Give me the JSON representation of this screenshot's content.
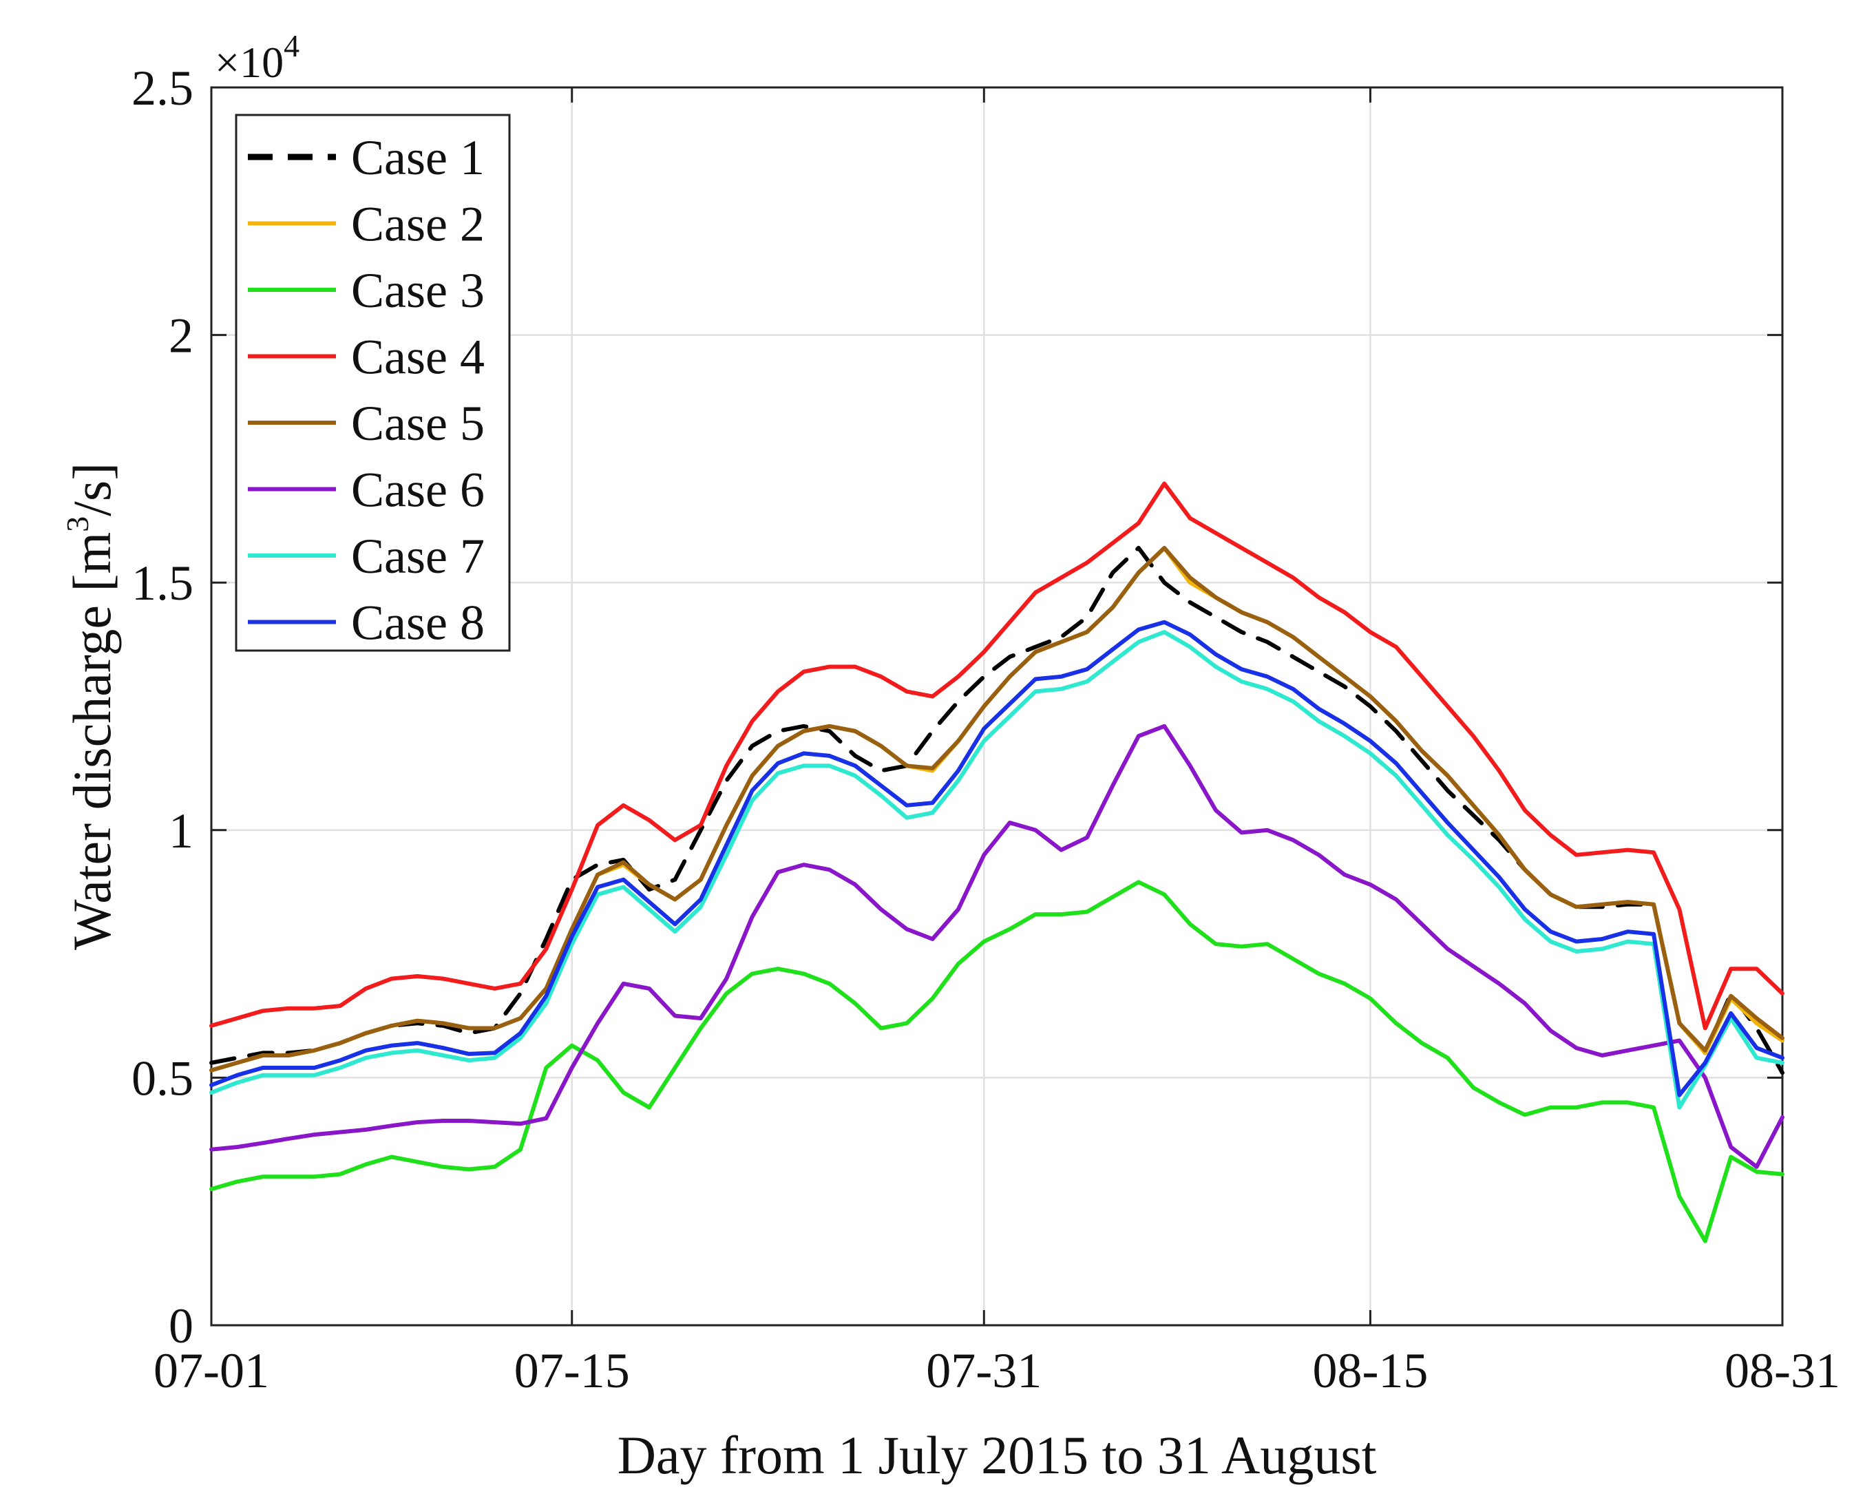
{
  "chart_data": {
    "type": "line",
    "title": "",
    "xlabel": "Day from 1 July 2015 to 31 August",
    "ylabel_main": "Water discharge [m",
    "ylabel_sup": "3",
    "ylabel_tail": "/s]",
    "y_multiplier_base": "×10",
    "y_multiplier_exp": "4",
    "xlim": [
      0,
      61
    ],
    "ylim": [
      0,
      2.5
    ],
    "x_ticks": [
      {
        "value": 0,
        "label": "07-01"
      },
      {
        "value": 14,
        "label": "07-15"
      },
      {
        "value": 30,
        "label": "07-31"
      },
      {
        "value": 45,
        "label": "08-15"
      },
      {
        "value": 61,
        "label": "08-31"
      }
    ],
    "y_ticks": [
      {
        "value": 0,
        "label": "0"
      },
      {
        "value": 0.5,
        "label": "0.5"
      },
      {
        "value": 1,
        "label": "1"
      },
      {
        "value": 1.5,
        "label": "1.5"
      },
      {
        "value": 2,
        "label": "2"
      },
      {
        "value": 2.5,
        "label": "2.5"
      }
    ],
    "grid": true,
    "legend_position": "top-left",
    "x": [
      0,
      1,
      2,
      3,
      4,
      5,
      6,
      7,
      8,
      9,
      10,
      11,
      12,
      13,
      14,
      15,
      16,
      17,
      18,
      19,
      20,
      21,
      22,
      23,
      24,
      25,
      26,
      27,
      28,
      29,
      30,
      31,
      32,
      33,
      34,
      35,
      36,
      37,
      38,
      39,
      40,
      41,
      42,
      43,
      44,
      45,
      46,
      47,
      48,
      49,
      50,
      51,
      52,
      53,
      54,
      55,
      56,
      57,
      58,
      59,
      60,
      61
    ],
    "series": [
      {
        "name": "Case 1",
        "color": "#000000",
        "dash": true,
        "values": [
          0.53,
          0.54,
          0.55,
          0.55,
          0.555,
          0.57,
          0.59,
          0.605,
          0.61,
          0.605,
          0.59,
          0.6,
          0.67,
          0.78,
          0.9,
          0.93,
          0.94,
          0.88,
          0.9,
          1.0,
          1.1,
          1.17,
          1.2,
          1.21,
          1.2,
          1.15,
          1.12,
          1.13,
          1.2,
          1.26,
          1.31,
          1.35,
          1.37,
          1.39,
          1.43,
          1.52,
          1.57,
          1.5,
          1.46,
          1.43,
          1.4,
          1.38,
          1.35,
          1.32,
          1.29,
          1.25,
          1.2,
          1.14,
          1.08,
          1.03,
          0.98,
          0.92,
          0.87,
          0.845,
          0.845,
          0.85,
          0.85,
          0.61,
          0.55,
          0.67,
          0.6,
          0.51
        ]
      },
      {
        "name": "Case 2",
        "color": "#f2b40b",
        "dash": false,
        "values": [
          0.515,
          0.53,
          0.545,
          0.545,
          0.555,
          0.57,
          0.59,
          0.605,
          0.615,
          0.61,
          0.6,
          0.6,
          0.62,
          0.68,
          0.8,
          0.91,
          0.93,
          0.89,
          0.86,
          0.9,
          1.01,
          1.11,
          1.17,
          1.2,
          1.21,
          1.2,
          1.17,
          1.13,
          1.12,
          1.18,
          1.25,
          1.31,
          1.36,
          1.38,
          1.4,
          1.45,
          1.52,
          1.57,
          1.5,
          1.47,
          1.44,
          1.42,
          1.39,
          1.35,
          1.31,
          1.27,
          1.22,
          1.16,
          1.11,
          1.05,
          0.99,
          0.92,
          0.87,
          0.845,
          0.85,
          0.855,
          0.85,
          0.61,
          0.55,
          0.66,
          0.61,
          0.575
        ]
      },
      {
        "name": "Case 3",
        "color": "#1fe01a",
        "dash": false,
        "values": [
          0.275,
          0.29,
          0.3,
          0.3,
          0.3,
          0.305,
          0.325,
          0.34,
          0.33,
          0.32,
          0.315,
          0.32,
          0.355,
          0.52,
          0.565,
          0.535,
          0.47,
          0.44,
          0.52,
          0.6,
          0.67,
          0.71,
          0.72,
          0.71,
          0.69,
          0.65,
          0.6,
          0.61,
          0.66,
          0.73,
          0.775,
          0.8,
          0.83,
          0.83,
          0.835,
          0.865,
          0.895,
          0.87,
          0.81,
          0.77,
          0.765,
          0.77,
          0.74,
          0.71,
          0.69,
          0.66,
          0.61,
          0.57,
          0.54,
          0.48,
          0.45,
          0.425,
          0.44,
          0.44,
          0.45,
          0.45,
          0.44,
          0.26,
          0.17,
          0.34,
          0.31,
          0.305
        ]
      },
      {
        "name": "Case 4",
        "color": "#f21c1c",
        "dash": false,
        "values": [
          0.605,
          0.62,
          0.635,
          0.64,
          0.64,
          0.645,
          0.68,
          0.7,
          0.705,
          0.7,
          0.69,
          0.68,
          0.69,
          0.76,
          0.88,
          1.01,
          1.05,
          1.02,
          0.98,
          1.01,
          1.13,
          1.22,
          1.28,
          1.32,
          1.33,
          1.33,
          1.31,
          1.28,
          1.27,
          1.31,
          1.36,
          1.42,
          1.48,
          1.51,
          1.54,
          1.58,
          1.62,
          1.7,
          1.63,
          1.6,
          1.57,
          1.54,
          1.51,
          1.47,
          1.44,
          1.4,
          1.37,
          1.31,
          1.25,
          1.19,
          1.12,
          1.04,
          0.99,
          0.95,
          0.955,
          0.96,
          0.955,
          0.84,
          0.6,
          0.72,
          0.72,
          0.67
        ]
      },
      {
        "name": "Case 5",
        "color": "#9a6012",
        "dash": false,
        "values": [
          0.515,
          0.53,
          0.545,
          0.545,
          0.555,
          0.57,
          0.59,
          0.605,
          0.615,
          0.61,
          0.6,
          0.6,
          0.62,
          0.68,
          0.8,
          0.91,
          0.935,
          0.89,
          0.86,
          0.9,
          1.01,
          1.11,
          1.17,
          1.2,
          1.21,
          1.2,
          1.17,
          1.13,
          1.125,
          1.18,
          1.25,
          1.31,
          1.36,
          1.38,
          1.4,
          1.45,
          1.52,
          1.57,
          1.51,
          1.47,
          1.44,
          1.42,
          1.39,
          1.35,
          1.31,
          1.27,
          1.22,
          1.16,
          1.11,
          1.05,
          0.99,
          0.92,
          0.87,
          0.845,
          0.85,
          0.855,
          0.85,
          0.61,
          0.555,
          0.665,
          0.62,
          0.58
        ]
      },
      {
        "name": "Case 6",
        "color": "#8a16c9",
        "dash": false,
        "values": [
          0.355,
          0.36,
          0.368,
          0.377,
          0.385,
          0.39,
          0.395,
          0.403,
          0.41,
          0.413,
          0.413,
          0.41,
          0.407,
          0.418,
          0.52,
          0.61,
          0.69,
          0.68,
          0.625,
          0.62,
          0.7,
          0.825,
          0.915,
          0.93,
          0.92,
          0.89,
          0.84,
          0.8,
          0.78,
          0.84,
          0.95,
          1.015,
          1.0,
          0.96,
          0.985,
          1.09,
          1.19,
          1.21,
          1.13,
          1.04,
          0.995,
          1.0,
          0.98,
          0.95,
          0.91,
          0.89,
          0.86,
          0.81,
          0.76,
          0.725,
          0.69,
          0.65,
          0.595,
          0.56,
          0.545,
          0.555,
          0.565,
          0.575,
          0.5,
          0.36,
          0.32,
          0.42
        ]
      },
      {
        "name": "Case 7",
        "color": "#2ee8d0",
        "dash": false,
        "values": [
          0.47,
          0.49,
          0.505,
          0.505,
          0.505,
          0.52,
          0.54,
          0.55,
          0.555,
          0.545,
          0.535,
          0.54,
          0.58,
          0.65,
          0.77,
          0.87,
          0.885,
          0.84,
          0.795,
          0.845,
          0.95,
          1.06,
          1.115,
          1.13,
          1.13,
          1.11,
          1.07,
          1.025,
          1.035,
          1.1,
          1.18,
          1.23,
          1.28,
          1.285,
          1.3,
          1.34,
          1.38,
          1.4,
          1.37,
          1.33,
          1.3,
          1.285,
          1.26,
          1.22,
          1.19,
          1.155,
          1.11,
          1.05,
          0.99,
          0.94,
          0.885,
          0.82,
          0.775,
          0.755,
          0.76,
          0.775,
          0.77,
          0.44,
          0.525,
          0.62,
          0.54,
          0.53
        ]
      },
      {
        "name": "Case 8",
        "color": "#1830e6",
        "dash": false,
        "values": [
          0.485,
          0.505,
          0.52,
          0.52,
          0.52,
          0.535,
          0.555,
          0.565,
          0.57,
          0.56,
          0.548,
          0.55,
          0.59,
          0.665,
          0.785,
          0.885,
          0.9,
          0.855,
          0.81,
          0.86,
          0.97,
          1.08,
          1.135,
          1.155,
          1.15,
          1.13,
          1.09,
          1.05,
          1.055,
          1.12,
          1.205,
          1.255,
          1.305,
          1.31,
          1.325,
          1.365,
          1.405,
          1.42,
          1.395,
          1.355,
          1.325,
          1.31,
          1.285,
          1.245,
          1.215,
          1.18,
          1.135,
          1.075,
          1.015,
          0.96,
          0.905,
          0.84,
          0.795,
          0.775,
          0.78,
          0.795,
          0.79,
          0.465,
          0.53,
          0.63,
          0.56,
          0.54
        ]
      }
    ]
  }
}
